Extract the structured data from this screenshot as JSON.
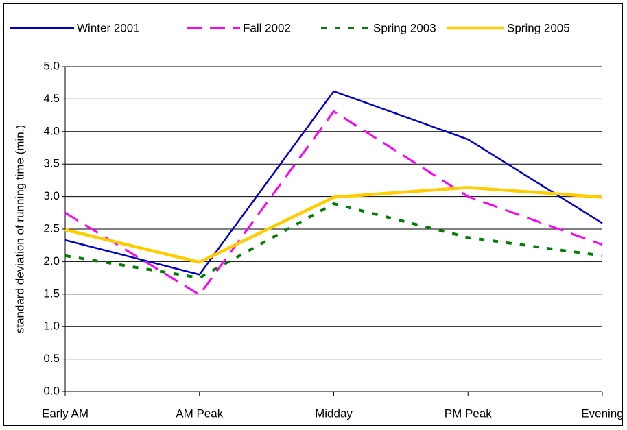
{
  "chart_data": {
    "type": "line",
    "y_label": "standard deviation of running time (min.)",
    "categories": [
      "Early AM",
      "AM Peak",
      "Midday",
      "PM Peak",
      "Evening"
    ],
    "series": [
      {
        "name": "Winter 2001",
        "color": "#0000cc",
        "dash": "solid",
        "values": [
          2.33,
          1.8,
          4.62,
          3.88,
          2.59
        ]
      },
      {
        "name": "Fall 2002",
        "color": "#ff00ff",
        "dash": "dashed",
        "values": [
          2.75,
          1.49,
          4.31,
          3.0,
          2.26
        ]
      },
      {
        "name": "Spring 2003",
        "color": "#008000",
        "dash": "dotted",
        "values": [
          2.09,
          1.75,
          2.89,
          2.37,
          2.09
        ]
      },
      {
        "name": "Spring 2005",
        "color": "#ffcc00",
        "dash": "thick",
        "values": [
          2.49,
          1.99,
          2.99,
          3.14,
          2.99
        ]
      }
    ],
    "ylim": [
      0,
      5
    ],
    "yticks": [
      {
        "value": 0,
        "label": "0.0"
      },
      0.5,
      {
        "value": 1,
        "label": "1.0"
      },
      1.5,
      {
        "value": 2,
        "label": "2.0"
      },
      2.5,
      {
        "value": 3,
        "label": "3.0"
      },
      3.5,
      {
        "value": 4,
        "label": "4.0"
      },
      4.5,
      {
        "value": 5,
        "label": "5.0"
      }
    ],
    "grid": true,
    "legend": "top"
  }
}
